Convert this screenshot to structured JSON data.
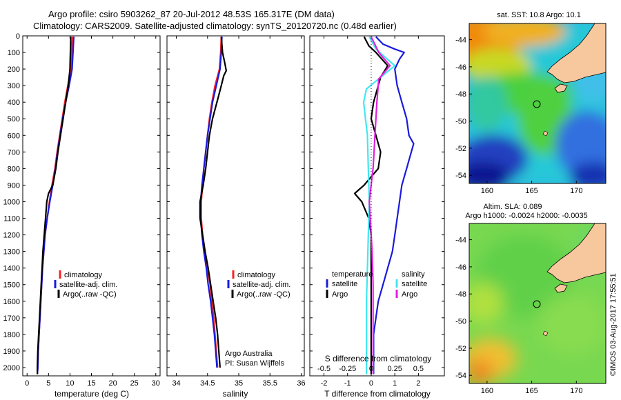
{
  "header": {
    "title_line1": "Argo profile: csiro 5903262_87 20-Jul-2012 48.53S 165.317E (DM data)",
    "title_line2": "Climatology: CARS2009. Satellite-adjusted climatology: synTS_20120720.nc (0.48d earlier)"
  },
  "colors": {
    "climatology": "#ff2020",
    "satellite": "#1a1adc",
    "argo": "#000000",
    "sat_salinity": "#40e8f0",
    "argo_salinity": "#e020e0"
  },
  "panels": {
    "temperature": {
      "xlabel": "temperature (deg C)",
      "legend": [
        "climatology",
        "satellite-adj. clim.",
        "Argo(..raw -QC)"
      ]
    },
    "salinity": {
      "xlabel": "salinity",
      "legend": [
        "climatology",
        "satellite-adj. clim.",
        "Argo(..raw -QC)"
      ],
      "credit1": "Argo Australia",
      "credit2": "PI: Susan Wijffels"
    },
    "difference": {
      "xlabel": "T difference from climatology",
      "top_label": "S difference from climatology",
      "legend_temp_head": "temperature",
      "legend_sal_head": "salinity",
      "legend_temp": [
        "satellite",
        "Argo"
      ],
      "legend_sal": [
        "satellite",
        "Argo"
      ]
    }
  },
  "maps": {
    "sst_title": "sat. SST: 10.8 Argo: 10.1",
    "sla_title1": "Altim. SLA: 0.089",
    "sla_title2": "Argo h1000: -0.0024 h2000: -0.0035",
    "lon_ticks": [
      "160",
      "165",
      "170"
    ],
    "lat_ticks": [
      "-44",
      "-46",
      "-48",
      "-50",
      "-52",
      "-54"
    ],
    "watermark": "©IMOS 03-Aug-2017 17:55:51"
  },
  "chart_data": [
    {
      "type": "line",
      "title": "",
      "xlabel": "temperature (deg C)",
      "ylabel": "",
      "xlim": [
        -1,
        31
      ],
      "ylim": [
        2050,
        0
      ],
      "xticks": [
        0,
        5,
        10,
        15,
        20,
        25,
        30
      ],
      "yticks": [
        0,
        100,
        200,
        300,
        400,
        500,
        600,
        700,
        800,
        900,
        1000,
        1100,
        1200,
        1300,
        1400,
        1500,
        1600,
        1700,
        1800,
        1900,
        2000
      ],
      "series": [
        {
          "name": "climatology",
          "points": [
            [
              10.6,
              5
            ],
            [
              10.4,
              100
            ],
            [
              10.2,
              200
            ],
            [
              9.5,
              300
            ],
            [
              8.8,
              400
            ],
            [
              8.2,
              500
            ],
            [
              7.6,
              600
            ],
            [
              7.0,
              700
            ],
            [
              6.5,
              800
            ],
            [
              5.8,
              900
            ],
            [
              5.2,
              1000
            ],
            [
              4.7,
              1100
            ],
            [
              4.2,
              1200
            ],
            [
              3.9,
              1300
            ],
            [
              3.6,
              1400
            ],
            [
              3.4,
              1500
            ],
            [
              3.2,
              1600
            ],
            [
              3.0,
              1700
            ],
            [
              2.8,
              1800
            ],
            [
              2.6,
              1900
            ],
            [
              2.5,
              2000
            ],
            [
              2.4,
              2040
            ]
          ]
        },
        {
          "name": "satellite-adj. clim.",
          "points": [
            [
              10.9,
              5
            ],
            [
              10.7,
              100
            ],
            [
              10.5,
              200
            ],
            [
              9.8,
              300
            ],
            [
              9.0,
              400
            ],
            [
              8.3,
              500
            ],
            [
              7.7,
              600
            ],
            [
              7.1,
              700
            ],
            [
              6.6,
              800
            ],
            [
              6.0,
              900
            ],
            [
              5.3,
              1000
            ],
            [
              4.7,
              1100
            ],
            [
              4.2,
              1200
            ],
            [
              3.9,
              1300
            ],
            [
              3.6,
              1400
            ],
            [
              3.4,
              1500
            ],
            [
              3.2,
              1600
            ],
            [
              3.0,
              1700
            ],
            [
              2.8,
              1800
            ],
            [
              2.6,
              1900
            ],
            [
              2.5,
              2000
            ],
            [
              2.4,
              2040
            ]
          ]
        },
        {
          "name": "Argo(..raw -QC)",
          "points": [
            [
              10.2,
              5
            ],
            [
              10.1,
              100
            ],
            [
              10.0,
              200
            ],
            [
              9.6,
              300
            ],
            [
              9.0,
              400
            ],
            [
              8.4,
              500
            ],
            [
              7.8,
              600
            ],
            [
              7.2,
              700
            ],
            [
              6.7,
              800
            ],
            [
              6.0,
              900
            ],
            [
              5.0,
              950
            ],
            [
              4.6,
              1000
            ],
            [
              4.3,
              1100
            ],
            [
              4.0,
              1200
            ],
            [
              3.7,
              1300
            ],
            [
              3.5,
              1400
            ],
            [
              3.3,
              1500
            ],
            [
              3.1,
              1600
            ],
            [
              2.9,
              1700
            ],
            [
              2.7,
              1800
            ],
            [
              2.5,
              1900
            ],
            [
              2.4,
              2000
            ],
            [
              2.4,
              2040
            ]
          ]
        }
      ]
    },
    {
      "type": "line",
      "title": "",
      "xlabel": "salinity",
      "ylabel": "",
      "xlim": [
        33.85,
        36.05
      ],
      "ylim": [
        2050,
        0
      ],
      "xticks": [
        34,
        34.5,
        35,
        35.5,
        36
      ],
      "series": [
        {
          "name": "climatology",
          "points": [
            [
              34.72,
              5
            ],
            [
              34.71,
              100
            ],
            [
              34.69,
              200
            ],
            [
              34.62,
              300
            ],
            [
              34.57,
              400
            ],
            [
              34.53,
              500
            ],
            [
              34.5,
              600
            ],
            [
              34.47,
              700
            ],
            [
              34.44,
              800
            ],
            [
              34.42,
              900
            ],
            [
              34.4,
              1000
            ],
            [
              34.4,
              1100
            ],
            [
              34.42,
              1200
            ],
            [
              34.46,
              1300
            ],
            [
              34.5,
              1400
            ],
            [
              34.54,
              1500
            ],
            [
              34.57,
              1600
            ],
            [
              34.6,
              1700
            ],
            [
              34.62,
              1800
            ],
            [
              34.64,
              1900
            ],
            [
              34.66,
              2000
            ]
          ]
        },
        {
          "name": "satellite-adj. clim.",
          "points": [
            [
              34.73,
              5
            ],
            [
              34.72,
              100
            ],
            [
              34.7,
              200
            ],
            [
              34.64,
              300
            ],
            [
              34.58,
              400
            ],
            [
              34.54,
              500
            ],
            [
              34.5,
              600
            ],
            [
              34.47,
              700
            ],
            [
              34.44,
              800
            ],
            [
              34.41,
              900
            ],
            [
              34.39,
              1000
            ],
            [
              34.39,
              1100
            ],
            [
              34.41,
              1200
            ],
            [
              34.44,
              1300
            ],
            [
              34.48,
              1400
            ],
            [
              34.51,
              1500
            ],
            [
              34.55,
              1600
            ],
            [
              34.58,
              1700
            ],
            [
              34.61,
              1800
            ],
            [
              34.63,
              1900
            ],
            [
              34.65,
              2000
            ]
          ]
        },
        {
          "name": "Argo(..raw -QC)",
          "points": [
            [
              34.72,
              5
            ],
            [
              34.74,
              100
            ],
            [
              34.78,
              170
            ],
            [
              34.8,
              210
            ],
            [
              34.76,
              240
            ],
            [
              34.72,
              300
            ],
            [
              34.65,
              400
            ],
            [
              34.58,
              500
            ],
            [
              34.53,
              600
            ],
            [
              34.5,
              700
            ],
            [
              34.47,
              800
            ],
            [
              34.43,
              900
            ],
            [
              34.38,
              1000
            ],
            [
              34.38,
              1100
            ],
            [
              34.42,
              1200
            ],
            [
              34.46,
              1300
            ],
            [
              34.51,
              1400
            ],
            [
              34.55,
              1500
            ],
            [
              34.59,
              1600
            ],
            [
              34.63,
              1700
            ],
            [
              34.66,
              1800
            ],
            [
              34.68,
              1900
            ],
            [
              34.7,
              2000
            ]
          ]
        }
      ]
    },
    {
      "type": "line",
      "title": "",
      "xlabel": "T difference from climatology",
      "top_label": "S difference from climatology",
      "ylabel": "",
      "xlim": [
        -2.6,
        3.1
      ],
      "ylim": [
        2050,
        0
      ],
      "xticks": [
        -2,
        -1,
        0,
        1,
        2
      ],
      "xticks_top": [
        "-0.5",
        "-0.25",
        "0",
        "0.25",
        "0.5"
      ],
      "series": [
        {
          "name": "temperature satellite",
          "points": [
            [
              0.2,
              5
            ],
            [
              0.5,
              50
            ],
            [
              1.0,
              80
            ],
            [
              1.4,
              100
            ],
            [
              1.2,
              140
            ],
            [
              1.0,
              200
            ],
            [
              1.1,
              300
            ],
            [
              1.3,
              400
            ],
            [
              1.5,
              500
            ],
            [
              1.6,
              600
            ],
            [
              1.8,
              650
            ],
            [
              1.7,
              700
            ],
            [
              1.5,
              800
            ],
            [
              1.3,
              900
            ],
            [
              1.2,
              1000
            ],
            [
              1.1,
              1100
            ],
            [
              1.0,
              1200
            ],
            [
              0.9,
              1300
            ],
            [
              0.7,
              1400
            ],
            [
              0.5,
              1500
            ],
            [
              0.3,
              1600
            ],
            [
              0.2,
              1700
            ],
            [
              0.1,
              1800
            ],
            [
              0.1,
              1900
            ],
            [
              0.1,
              2040
            ]
          ]
        },
        {
          "name": "temperature Argo",
          "points": [
            [
              -0.3,
              5
            ],
            [
              -0.1,
              60
            ],
            [
              0.2,
              100
            ],
            [
              0.7,
              180
            ],
            [
              0.4,
              250
            ],
            [
              0.1,
              400
            ],
            [
              0.0,
              500
            ],
            [
              0.2,
              600
            ],
            [
              0.4,
              700
            ],
            [
              0.3,
              800
            ],
            [
              -0.3,
              900
            ],
            [
              -0.7,
              950
            ],
            [
              -0.4,
              1000
            ],
            [
              -0.1,
              1100
            ],
            [
              0.0,
              1200
            ],
            [
              0.0,
              1400
            ],
            [
              0.0,
              1600
            ],
            [
              0.0,
              2040
            ]
          ]
        },
        {
          "name": "salinity satellite",
          "points": [
            [
              -0.02,
              5
            ],
            [
              0.05,
              80
            ],
            [
              0.25,
              180
            ],
            [
              0.1,
              250
            ],
            [
              -0.05,
              320
            ],
            [
              -0.08,
              400
            ],
            [
              -0.06,
              500
            ],
            [
              -0.04,
              600
            ],
            [
              -0.03,
              800
            ],
            [
              -0.02,
              1000
            ],
            [
              -0.03,
              1200
            ],
            [
              -0.04,
              1400
            ],
            [
              -0.05,
              1600
            ],
            [
              -0.05,
              1800
            ],
            [
              -0.05,
              2040
            ]
          ]
        },
        {
          "name": "salinity Argo",
          "points": [
            [
              0.0,
              5
            ],
            [
              0.08,
              100
            ],
            [
              0.2,
              180
            ],
            [
              0.08,
              260
            ],
            [
              0.06,
              400
            ],
            [
              0.05,
              500
            ],
            [
              0.04,
              600
            ],
            [
              0.03,
              700
            ],
            [
              0.02,
              800
            ],
            [
              0.0,
              900
            ],
            [
              -0.02,
              1000
            ],
            [
              -0.01,
              1100
            ],
            [
              0.01,
              1300
            ],
            [
              0.02,
              1500
            ],
            [
              0.02,
              1700
            ],
            [
              0.02,
              2040
            ]
          ]
        }
      ]
    }
  ]
}
